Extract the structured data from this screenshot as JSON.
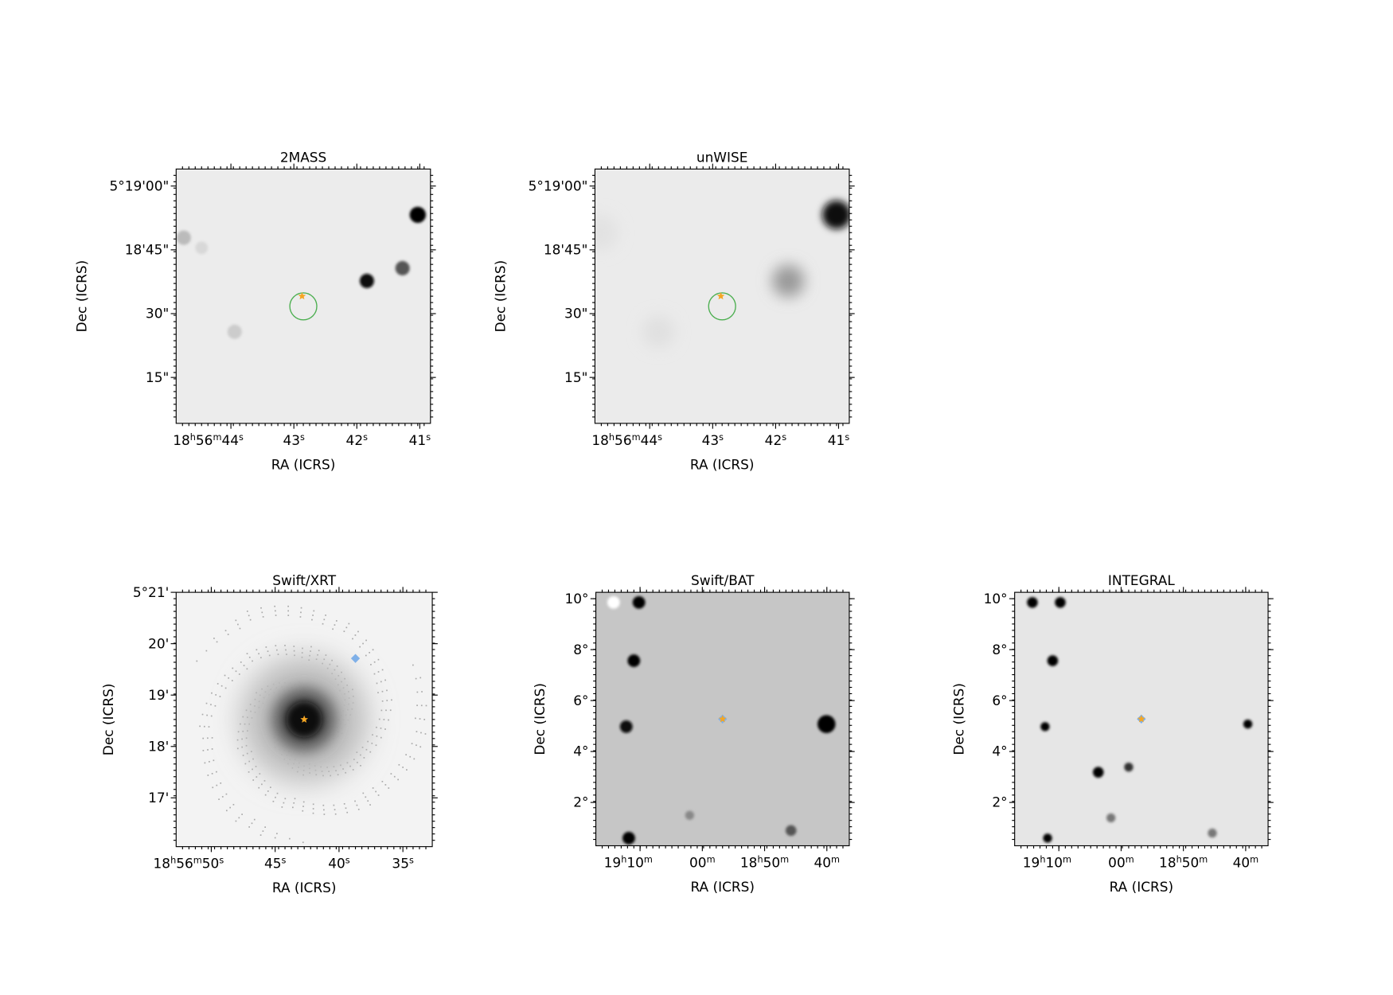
{
  "chart_data": [
    {
      "type": "image",
      "title": "2MASS",
      "xlabel": "RA (ICRS)",
      "ylabel": "Dec (ICRS)",
      "xlim": [
        44.87,
        40.83
      ],
      "ylim": [
        4.2,
        64.0
      ],
      "xticks": [
        {
          "value": 44,
          "label": "18h56m44s"
        },
        {
          "value": 43,
          "label": "43s"
        },
        {
          "value": 42,
          "label": "42s"
        },
        {
          "value": 41,
          "label": "41s"
        }
      ],
      "yticks": [
        {
          "value": 60,
          "label": "5°19'00\""
        },
        {
          "value": 45,
          "label": "18'45\""
        },
        {
          "value": 30,
          "label": "30\""
        },
        {
          "value": 15,
          "label": "15\""
        }
      ]
    },
    {
      "type": "image",
      "title": "unWISE",
      "xlabel": "RA (ICRS)",
      "ylabel": "Dec (ICRS)",
      "xlim": [
        44.87,
        40.83
      ],
      "ylim": [
        4.2,
        64.0
      ],
      "xticks": [
        {
          "value": 44,
          "label": "18h56m44s"
        },
        {
          "value": 43,
          "label": "43s"
        },
        {
          "value": 42,
          "label": "42s"
        },
        {
          "value": 41,
          "label": "41s"
        }
      ],
      "yticks": [
        {
          "value": 60,
          "label": "5°19'00\""
        },
        {
          "value": 45,
          "label": "18'45\""
        },
        {
          "value": 30,
          "label": "30\""
        },
        {
          "value": 15,
          "label": "15\""
        }
      ]
    },
    {
      "type": "image",
      "title": "Swift/XRT",
      "xlabel": "RA (ICRS)",
      "ylabel": "Dec (ICRS)",
      "xlim": [
        52.75,
        32.7
      ],
      "ylim": [
        16.05,
        21.0
      ],
      "xticks": [
        {
          "value": 50,
          "label": "18h56m50s"
        },
        {
          "value": 45,
          "label": "45s"
        },
        {
          "value": 40,
          "label": "40s"
        },
        {
          "value": 35,
          "label": "35s"
        }
      ],
      "yticks": [
        {
          "value": 21,
          "label": "5°21'"
        },
        {
          "value": 20,
          "label": "20'"
        },
        {
          "value": 19,
          "label": "19'"
        },
        {
          "value": 18,
          "label": "18'"
        },
        {
          "value": 17,
          "label": "17'"
        }
      ]
    },
    {
      "type": "image",
      "title": "Swift/BAT",
      "xlabel": "RA (ICRS)",
      "ylabel": "Dec (ICRS)",
      "xlim": [
        1157.1,
        1116.4
      ],
      "ylim": [
        0.3,
        10.25
      ],
      "xticks": [
        {
          "value": 1150,
          "label": "19h10m"
        },
        {
          "value": 1140,
          "label": "00m"
        },
        {
          "value": 1130,
          "label": "18h50m"
        },
        {
          "value": 1120,
          "label": "40m"
        }
      ],
      "yticks": [
        {
          "value": 10,
          "label": "10°"
        },
        {
          "value": 8,
          "label": "8°"
        },
        {
          "value": 6,
          "label": "6°"
        },
        {
          "value": 4,
          "label": "4°"
        },
        {
          "value": 2,
          "label": "2°"
        }
      ]
    },
    {
      "type": "image",
      "title": "INTEGRAL",
      "xlabel": "RA (ICRS)",
      "ylabel": "Dec (ICRS)",
      "xlim": [
        1157.1,
        1116.4
      ],
      "ylim": [
        0.3,
        10.25
      ],
      "xticks": [
        {
          "value": 1150,
          "label": "19h10m"
        },
        {
          "value": 1140,
          "label": "00m"
        },
        {
          "value": 1130,
          "label": "18h50m"
        },
        {
          "value": 1120,
          "label": "40m"
        }
      ],
      "yticks": [
        {
          "value": 10,
          "label": "10°"
        },
        {
          "value": 8,
          "label": "8°"
        },
        {
          "value": 6,
          "label": "6°"
        },
        {
          "value": 4,
          "label": "4°"
        },
        {
          "value": 2,
          "label": "2°"
        }
      ]
    }
  ]
}
